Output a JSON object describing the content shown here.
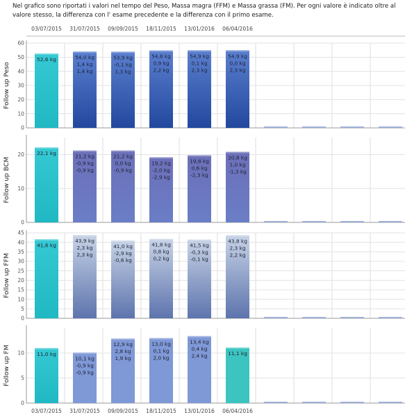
{
  "intro_text": "Nel grafico sono riportati i valori nel tempo del Peso, Massa magra (FFM) e Massa grassa (FM). Per ogni valore è indicato oltre al valore stesso, la differenza con l' esame precedente e la differenza con il primo esame.",
  "dates": [
    "03/07/2015",
    "31/07/2015",
    "09/09/2015",
    "18/11/2015",
    "13/01/2016",
    "06/04/2016"
  ],
  "chart_data": [
    {
      "type": "bar",
      "ylabel": "Follow up Peso",
      "ylim": [
        0,
        60
      ],
      "yticks": [
        0,
        10,
        20,
        30,
        40,
        50,
        60
      ],
      "categories": [
        "03/07/2015",
        "31/07/2015",
        "09/09/2015",
        "18/11/2015",
        "13/01/2016",
        "06/04/2016"
      ],
      "values": [
        52.6,
        54.0,
        53.9,
        54.8,
        54.9,
        54.9
      ],
      "labels": [
        [
          "52,6 kg"
        ],
        [
          "54,0 kg",
          "1,4 kg",
          "1,4 kg"
        ],
        [
          "53,9 kg",
          "-0,1 kg",
          "1,3 kg"
        ],
        [
          "54,8 kg",
          "0,9 kg",
          "2,2 kg"
        ],
        [
          "54,9 kg",
          "0,1 kg",
          "2,3 kg"
        ],
        [
          "54,9 kg",
          "0,0 kg",
          "2,3 kg"
        ]
      ],
      "colors": {
        "first": "#2cc4cc",
        "bar_top": "#5b7fcf",
        "bar_bottom": "#22489e"
      }
    },
    {
      "type": "bar",
      "ylabel": "Follow up BCM",
      "ylim": [
        0,
        25
      ],
      "yticks": [
        0,
        10,
        20
      ],
      "categories": [
        "03/07/2015",
        "31/07/2015",
        "09/09/2015",
        "18/11/2015",
        "13/01/2016",
        "06/04/2016"
      ],
      "values": [
        22.1,
        21.2,
        21.2,
        19.2,
        19.8,
        20.8
      ],
      "labels": [
        [
          "22,1 kg"
        ],
        [
          "21,2 kg",
          "-0,9 kg",
          "-0,9 kg"
        ],
        [
          "21,2 kg",
          "0,0 kg",
          "-0,9 kg"
        ],
        [
          "19,2 kg",
          "-2,0 kg",
          "-2,9 kg"
        ],
        [
          "19,8 kg",
          "0,6 kg",
          "-2,3 kg"
        ],
        [
          "20,8 kg",
          "1,0 kg",
          "-1,3 kg"
        ]
      ],
      "colors": {
        "first": "#2cc4cc",
        "bar_top": "#6c6fb8",
        "bar_bottom": "#6a7ec6"
      }
    },
    {
      "type": "bar",
      "ylabel": "Follow up FFM",
      "ylim": [
        0,
        45
      ],
      "yticks": [
        0,
        5,
        10,
        15,
        20,
        25,
        30,
        35,
        40,
        45
      ],
      "categories": [
        "03/07/2015",
        "31/07/2015",
        "09/09/2015",
        "18/11/2015",
        "13/01/2016",
        "06/04/2016"
      ],
      "values": [
        41.6,
        43.9,
        41.0,
        41.8,
        41.5,
        43.8
      ],
      "labels": [
        [
          "41,6 kg"
        ],
        [
          "43,9 kg",
          "2,3 kg",
          "2,3 kg"
        ],
        [
          "41,0 kg",
          "-2,9 kg",
          "-0,6 kg"
        ],
        [
          "41,8 kg",
          "0,8 kg",
          "0,2 kg"
        ],
        [
          "41,5 kg",
          "-0,3 kg",
          "-0,1 kg"
        ],
        [
          "43,8 kg",
          "2,3 kg",
          "2,2 kg"
        ]
      ],
      "colors": {
        "first": "#2cc4cc",
        "bar_top": "#c7d3e6",
        "bar_bottom": "#5d74ad"
      }
    },
    {
      "type": "bar",
      "ylabel": "Follow up FM",
      "ylim": [
        0,
        15
      ],
      "yticks": [
        0,
        5,
        10
      ],
      "categories": [
        "03/07/2015",
        "31/07/2015",
        "09/09/2015",
        "18/11/2015",
        "13/01/2016",
        "06/04/2016"
      ],
      "values": [
        11.0,
        10.1,
        12.9,
        13.0,
        13.4,
        11.1
      ],
      "labels": [
        [
          "11,0 kg"
        ],
        [
          "10,1 kg",
          "-0,9 kg",
          "-0,9 kg"
        ],
        [
          "12,9 kg",
          "2,8 kg",
          "1,9 kg"
        ],
        [
          "13,0 kg",
          "0,1 kg",
          "2,0 kg"
        ],
        [
          "13,4 kg",
          "0,4 kg",
          "2,4 kg"
        ],
        [
          "11,1 kg"
        ]
      ],
      "colors": {
        "first": "#2cc4cc",
        "bar_top": "#7f98d6",
        "bar_bottom": "#7f98d6",
        "last": "#3cc4c0"
      }
    }
  ]
}
